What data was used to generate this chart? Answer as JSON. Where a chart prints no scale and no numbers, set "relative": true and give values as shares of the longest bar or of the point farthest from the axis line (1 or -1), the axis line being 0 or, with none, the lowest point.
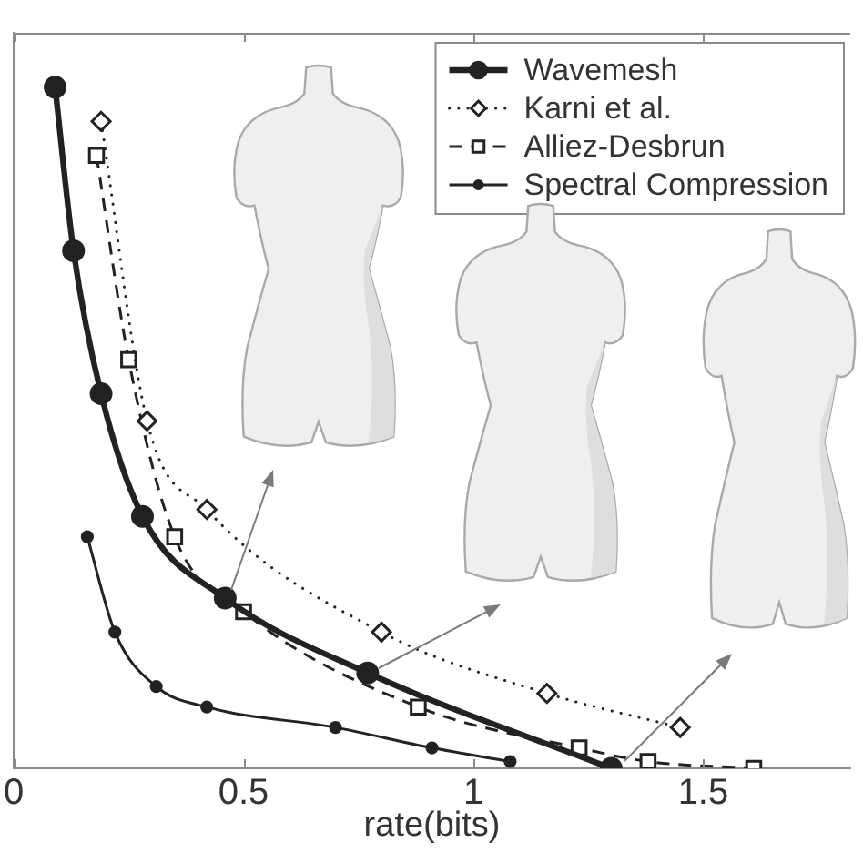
{
  "chart_data": {
    "type": "line",
    "xlabel": "rate(bits)",
    "relative": true,
    "legend": "top right",
    "xlim": [
      0,
      1.82
    ],
    "xticks": [
      0,
      0.5,
      1,
      1.5
    ],
    "series": [
      {
        "name": "Wavemesh",
        "color": "#222222",
        "marker": "circle",
        "line_style": "solid",
        "x": [
          0.09,
          0.13,
          0.19,
          0.28,
          0.46,
          0.77,
          1.3
        ],
        "values": [
          1,
          0.76,
          0.55,
          0.37,
          0.25,
          0.14,
          0
        ]
      },
      {
        "name": "Karni et al.",
        "color": "#222222",
        "marker": "diamond",
        "line_style": "dotted",
        "x": [
          0.19,
          0.29,
          0.42,
          0.8,
          1.16,
          1.45
        ],
        "values": [
          0.95,
          0.51,
          0.38,
          0.2,
          0.11,
          0.06
        ]
      },
      {
        "name": "Alliez-Desbrun",
        "color": "#222222",
        "marker": "square",
        "line_style": "dashed",
        "x": [
          0.18,
          0.25,
          0.35,
          0.5,
          0.88,
          1.23,
          1.38,
          1.61
        ],
        "values": [
          0.9,
          0.6,
          0.34,
          0.23,
          0.09,
          0.03,
          0.01,
          0
        ]
      },
      {
        "name": "Spectral Compression",
        "color": "#222222",
        "marker": "circle",
        "line_style": "solid",
        "x": [
          0.16,
          0.22,
          0.31,
          0.42,
          0.7,
          0.91,
          1.08
        ],
        "values": [
          0.34,
          0.2,
          0.12,
          0.09,
          0.06,
          0.03,
          0.01
        ]
      }
    ]
  }
}
